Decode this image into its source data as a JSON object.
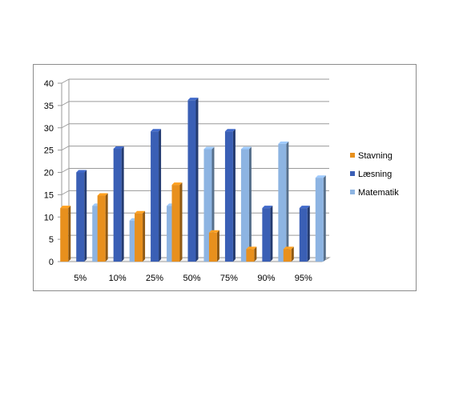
{
  "chart_data": {
    "type": "bar",
    "categories": [
      "5%",
      "10%",
      "25%",
      "50%",
      "75%",
      "90%",
      "95%"
    ],
    "series": [
      {
        "name": "Stavning",
        "color": "#E8901D",
        "values": [
          12,
          14.8,
          10.8,
          17.2,
          6.5,
          2.8,
          2.8
        ]
      },
      {
        "name": "Læsning",
        "color": "#3A5FB5",
        "values": [
          20,
          25.3,
          29.2,
          36.2,
          29.2,
          12,
          12
        ]
      },
      {
        "name": "Matematik",
        "color": "#8DB4E2",
        "values": [
          12.5,
          9.2,
          12.5,
          25.2,
          25.2,
          26.4,
          18.8
        ]
      }
    ],
    "title": "",
    "xlabel": "",
    "ylabel": "",
    "ylim": [
      0,
      40
    ],
    "yticks": [
      "0",
      "5",
      "10",
      "15",
      "20",
      "25",
      "30",
      "35",
      "40"
    ],
    "grid": true,
    "legend_position": "right"
  }
}
